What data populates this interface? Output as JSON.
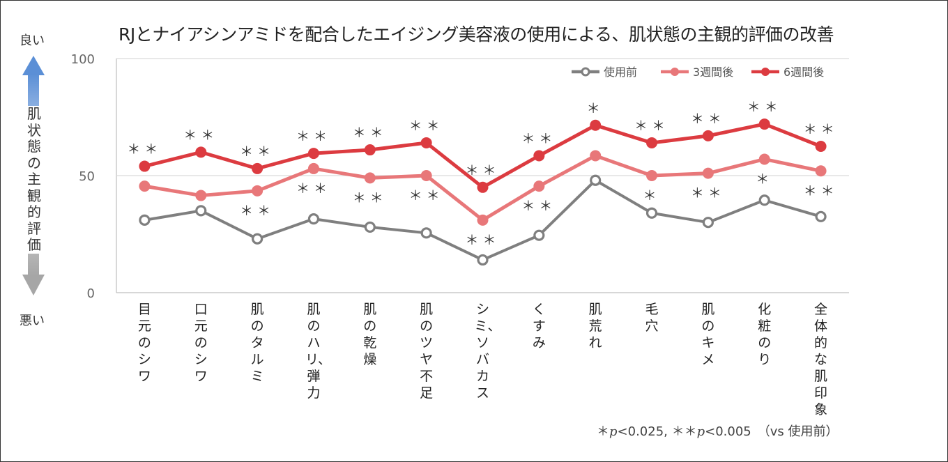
{
  "chart_data": {
    "type": "line",
    "title": "RJとナイアシンアミドを配合したエイジング美容液の使用による、肌状態の主観的評価の改善",
    "ylabel": "肌状態の主観的評価",
    "y_top_label": "良い",
    "y_bottom_label": "悪い",
    "ylim": [
      0,
      100
    ],
    "yticks": [
      0,
      50,
      100
    ],
    "grid": "horizontal at 50",
    "legend_position": "top-right",
    "categories": [
      "目元のシワ",
      "口元のシワ",
      "肌のタルミ",
      "肌のハリ、弾力",
      "肌の乾燥",
      "肌のツヤ不足",
      "シミ、ソバカス",
      "くすみ",
      "肌荒れ",
      "毛穴",
      "肌のキメ",
      "化粧のり",
      "全体的な肌印象"
    ],
    "series": [
      {
        "name": "使用前",
        "color": "#7f7f7f",
        "marker": "open",
        "values": [
          31,
          35,
          23,
          31.5,
          28,
          25.5,
          14,
          24.5,
          48,
          34,
          30,
          39.5,
          32.5
        ]
      },
      {
        "name": "3週間後",
        "color": "#e87779",
        "marker": "filled",
        "values": [
          45.5,
          41.5,
          43.5,
          53,
          49,
          50,
          31,
          45.5,
          58.5,
          50,
          51,
          57,
          52
        ],
        "significance": [
          "",
          "",
          "＊＊",
          "＊＊",
          "＊＊",
          "＊＊",
          "＊＊",
          "＊＊",
          "",
          "＊",
          "＊＊",
          "＊",
          "＊＊"
        ]
      },
      {
        "name": "6週間後",
        "color": "#dc3b40",
        "marker": "filled",
        "values": [
          54,
          60,
          53,
          59.5,
          61,
          64,
          45,
          58.5,
          71.5,
          64,
          67,
          72,
          62.5
        ],
        "significance": [
          "＊＊",
          "＊＊",
          "＊＊",
          "＊＊",
          "＊＊",
          "＊＊",
          "＊＊",
          "＊＊",
          "＊",
          "＊＊",
          "＊＊",
          "＊＊",
          "＊＊"
        ]
      }
    ],
    "footnote": {
      "star1": "＊",
      "p1": "p",
      "t1": "<0.025, ",
      "star2": "＊＊",
      "p2": "p",
      "t2": "<0.005　（vs 使用前）"
    }
  }
}
